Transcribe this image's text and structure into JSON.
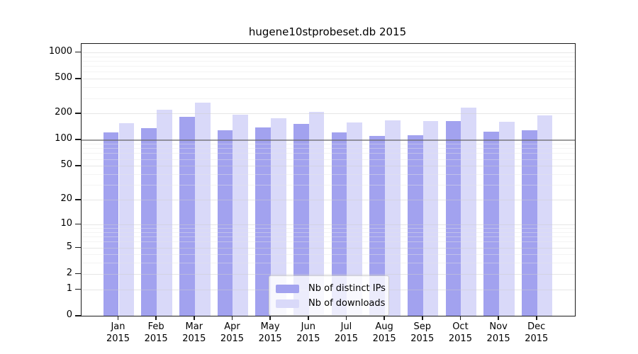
{
  "chart_data": {
    "type": "bar",
    "title": "hugene10stprobeset.db 2015",
    "year": "2015",
    "categories": [
      "Jan",
      "Feb",
      "Mar",
      "Apr",
      "May",
      "Jun",
      "Jul",
      "Aug",
      "Sep",
      "Oct",
      "Nov",
      "Dec"
    ],
    "series": [
      {
        "name": "Nb of distinct IPs",
        "color": "#a2a2ef",
        "values": [
          121,
          137,
          182,
          128,
          138,
          151,
          122,
          111,
          112,
          165,
          125,
          129
        ]
      },
      {
        "name": "Nb of downloads",
        "color": "#d9d9f9",
        "values": [
          156,
          221,
          268,
          196,
          177,
          209,
          157,
          167,
          165,
          236,
          160,
          190
        ]
      }
    ],
    "yscale": "log10(1+x)",
    "yticks": [
      0,
      1,
      2,
      5,
      10,
      20,
      50,
      100,
      200,
      500,
      1000
    ],
    "ylim": [
      0,
      1240
    ],
    "emphasized_gridline": 100,
    "grid": "on",
    "legend_position": "bottom-center",
    "axis_color": "#1a1a1a"
  }
}
